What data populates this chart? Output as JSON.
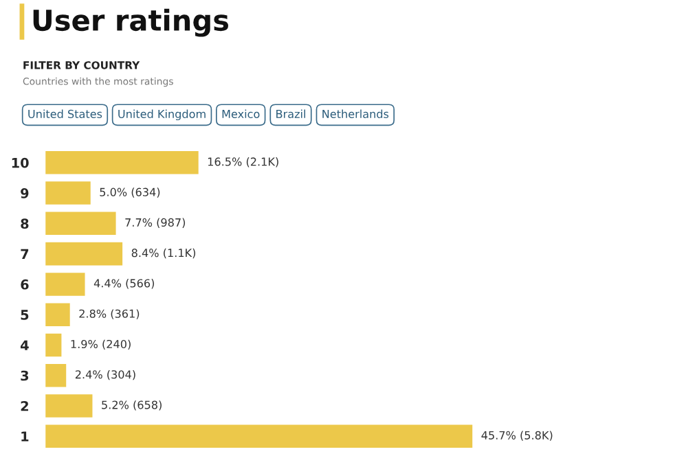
{
  "chart_data": {
    "type": "bar",
    "orientation": "horizontal",
    "title": "User ratings",
    "subtitle": "FILTER BY COUNTRY",
    "annotations": [
      "Countries with the most ratings",
      "United States",
      "United Kingdom",
      "Mexico",
      "Brazil",
      "Netherlands"
    ],
    "categories": [
      "10",
      "9",
      "8",
      "7",
      "6",
      "5",
      "4",
      "3",
      "2",
      "1"
    ],
    "values": [
      16.5,
      5.0,
      7.7,
      8.4,
      4.4,
      2.8,
      1.9,
      2.4,
      5.2,
      45.7
    ],
    "value_labels": [
      "16.5% (2.1K)",
      "5.0% (634)",
      "7.7% (987)",
      "8.4% (1.1K)",
      "4.4% (566)",
      "2.8% (361)",
      "1.9% (240)",
      "2.4% (304)",
      "5.2% (658)",
      "45.7% (5.8K)"
    ],
    "color": "#ecc84a",
    "tick_labels": "y",
    "grid": false,
    "legend": false
  }
}
